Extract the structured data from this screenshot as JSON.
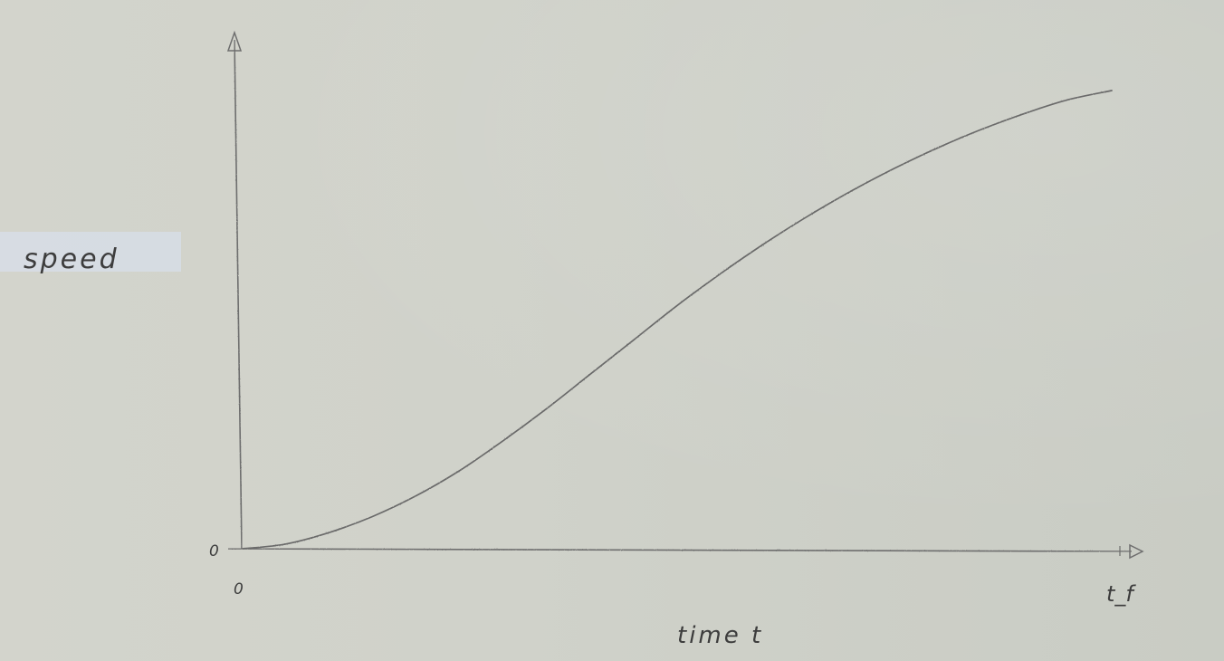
{
  "chart_data": {
    "type": "line",
    "title": "",
    "xlabel": "time t",
    "ylabel": "speed",
    "x_tick_labels": [
      "0",
      "t_f"
    ],
    "y_tick_labels": [
      "0"
    ],
    "x": [
      0,
      0.05,
      0.1,
      0.15,
      0.2,
      0.25,
      0.3,
      0.35,
      0.4,
      0.45,
      0.5,
      0.55,
      0.6,
      0.65,
      0.7,
      0.75,
      0.8,
      0.85,
      0.9,
      0.95,
      1.0
    ],
    "y": [
      0,
      0.01,
      0.035,
      0.07,
      0.115,
      0.17,
      0.235,
      0.305,
      0.38,
      0.455,
      0.53,
      0.6,
      0.665,
      0.725,
      0.78,
      0.83,
      0.875,
      0.915,
      0.95,
      0.98,
      1.0
    ],
    "xlim": [
      0,
      1
    ],
    "ylim": [
      0,
      1
    ],
    "grid": false,
    "legend": "none",
    "stroke_color": "#6a6a6a",
    "axis_color": "#6e6e6e"
  }
}
